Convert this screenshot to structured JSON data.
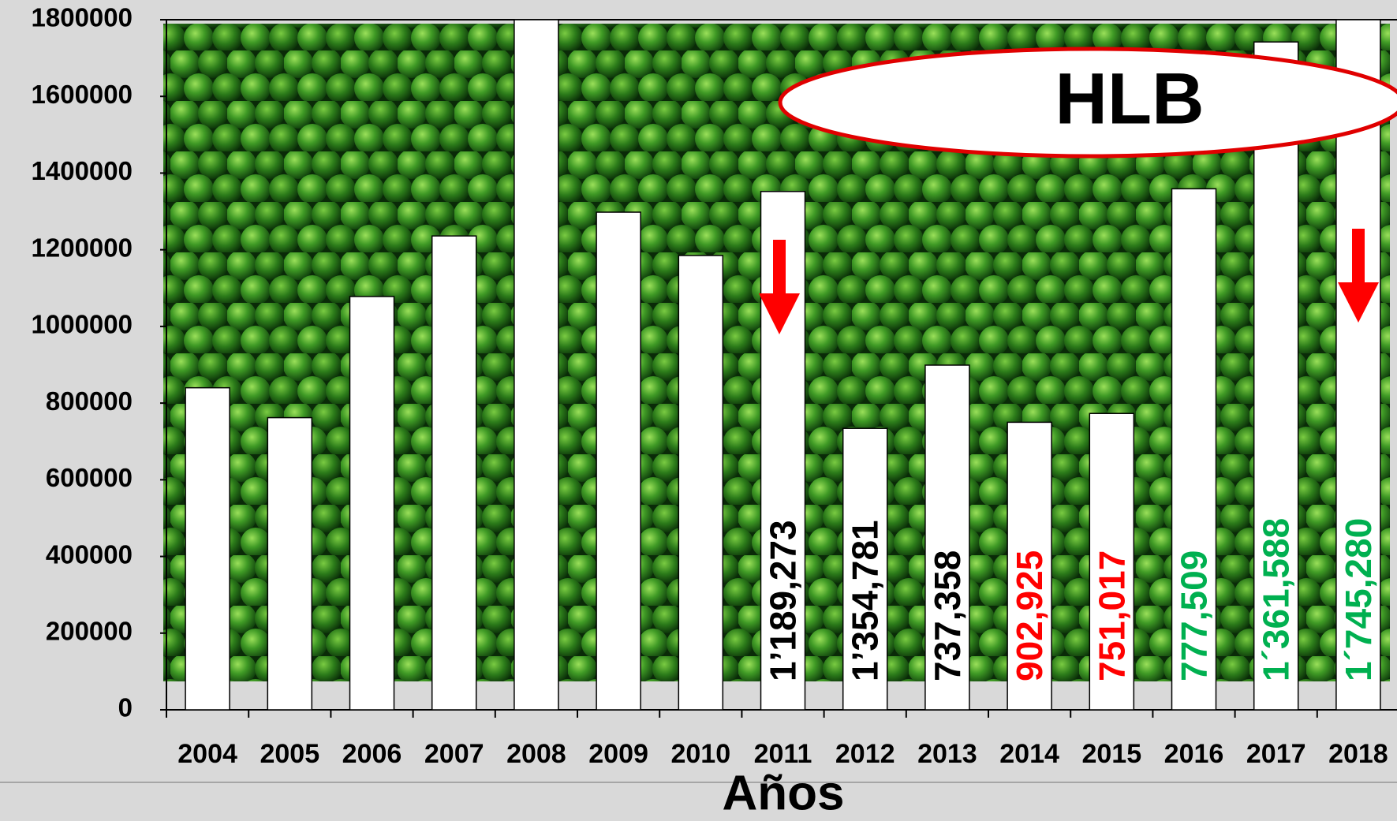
{
  "chart_data": {
    "type": "bar",
    "x_axis_title": "Años",
    "categories": [
      "2004",
      "2005",
      "2006",
      "2007",
      "2008",
      "2009",
      "2010",
      "2011",
      "2012",
      "2013",
      "2014",
      "2015",
      "2016",
      "2017",
      "2018"
    ],
    "values": [
      840000,
      762000,
      1078000,
      1236000,
      1800000,
      1298000,
      1185000,
      1352000,
      734000,
      899000,
      750000,
      773000,
      1359000,
      1742000,
      1800000
    ],
    "color": "#ffffff",
    "ylim": [
      0,
      1800000
    ],
    "yticks": [
      0,
      200000,
      400000,
      600000,
      800000,
      1000000,
      1200000,
      1400000,
      1600000,
      1800000
    ],
    "annotations": [
      {
        "text": "1’189,273",
        "color": "#000000"
      },
      {
        "text": "1’354,781",
        "color": "#000000"
      },
      {
        "text": "737,358",
        "color": "#000000"
      },
      {
        "text": "902,925",
        "color": "#ff0000"
      },
      {
        "text": "751,017",
        "color": "#ff0000"
      },
      {
        "text": "777,509",
        "color": "#00b050"
      },
      {
        "text": "1´361,588",
        "color": "#00b050"
      },
      {
        "text": "1´745,280",
        "color": "#00b050"
      }
    ],
    "callout": "HLB"
  }
}
